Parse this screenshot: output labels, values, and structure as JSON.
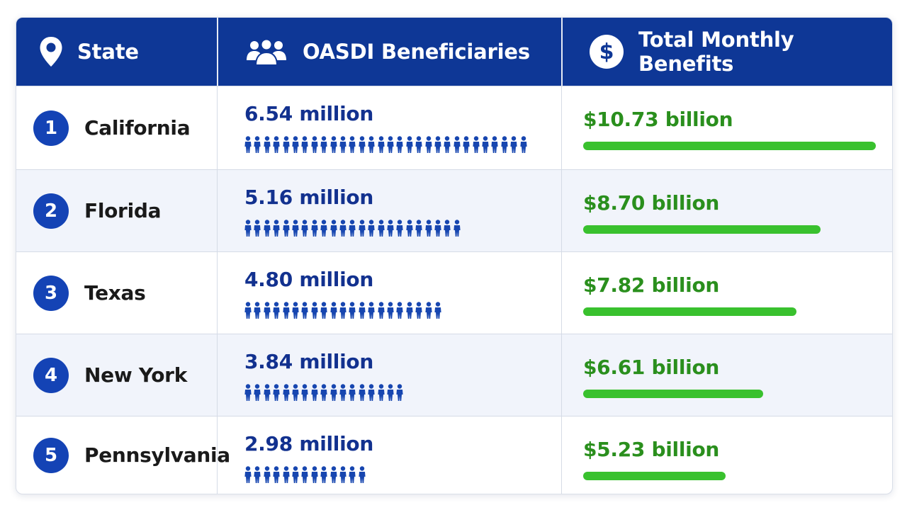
{
  "header": {
    "state": "State",
    "beneficiaries": "OASDI Beneficiaries",
    "benefits": "Total Monthly Benefits"
  },
  "colors": {
    "header_bg": "#0e3796",
    "rank_bg": "#1443b5",
    "beneficiary_text": "#12318f",
    "benefit_text": "#2a8f1d",
    "bar": "#39c12e"
  },
  "icons": {
    "state": "map-pin-icon",
    "beneficiaries": "people-group-icon",
    "benefits": "dollar-circle-icon",
    "row_people": "person-icon"
  },
  "rows": [
    {
      "rank": "1",
      "state": "California",
      "beneficiaries_label": "6.54 million",
      "benefits_label": "$10.73 billion"
    },
    {
      "rank": "2",
      "state": "Florida",
      "beneficiaries_label": "5.16 million",
      "benefits_label": "$8.70 billion"
    },
    {
      "rank": "3",
      "state": "Texas",
      "beneficiaries_label": "4.80 million",
      "benefits_label": "$7.82 billion"
    },
    {
      "rank": "4",
      "state": "New York",
      "beneficiaries_label": "3.84 million",
      "benefits_label": "$6.61 billion"
    },
    {
      "rank": "5",
      "state": "Pennsylvania",
      "beneficiaries_label": "2.98 million",
      "benefits_label": "$5.23 billion"
    }
  ],
  "chart_data": {
    "type": "table",
    "columns": [
      "State",
      "OASDI Beneficiaries",
      "Total Monthly Benefits"
    ],
    "categories": [
      "California",
      "Florida",
      "Texas",
      "New York",
      "Pennsylvania"
    ],
    "series": [
      {
        "name": "OASDI Beneficiaries",
        "unit": "million",
        "values": [
          6.54,
          5.16,
          4.8,
          3.84,
          2.98
        ]
      },
      {
        "name": "Total Monthly Benefits",
        "unit": "billion USD",
        "values": [
          10.73,
          8.7,
          7.82,
          6.61,
          5.23
        ]
      }
    ],
    "pictogram_counts": [
      30,
      23,
      21,
      17,
      13
    ],
    "bar_max": 10.73
  }
}
